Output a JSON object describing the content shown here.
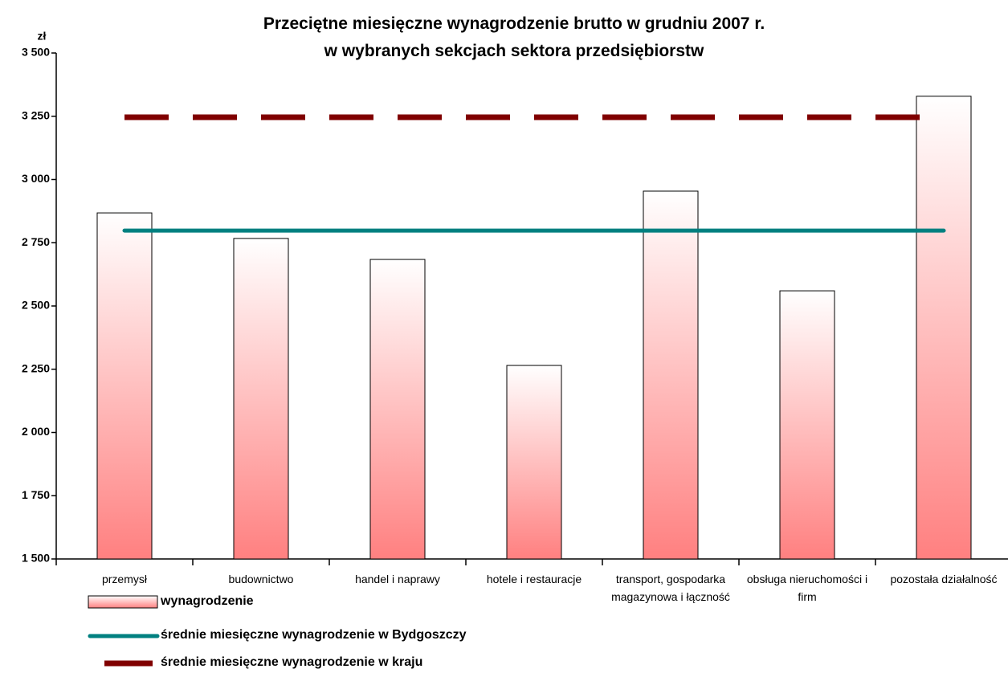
{
  "chart_data": {
    "type": "bar",
    "title": [
      "Przeciętne miesięczne wynagrodzenie brutto w grudniu 2007 r.",
      "w wybranych sekcjach sektora przedsiębiorstw"
    ],
    "y_axis_label": "zł",
    "categories": [
      "przemysł",
      "budownictwo",
      "handel i naprawy",
      "hotele i restauracje",
      "transport, gospodarka magazynowa i łączność",
      "obsługa nieruchomości i firm",
      "pozostała działalność"
    ],
    "series": [
      {
        "name": "wynagrodzenie",
        "type": "bar",
        "color": "#ff8080",
        "values": [
          2868,
          2767,
          2684,
          2265,
          2954,
          2560,
          3329
        ]
      },
      {
        "name": "średnie miesięczne wynagrodzenie w Bydgoszczy",
        "type": "line",
        "color": "#008080",
        "values": [
          2798,
          2798,
          2798,
          2798,
          2798,
          2798,
          2798
        ]
      },
      {
        "name": "średnie miesięczne wynagrodzenie w kraju",
        "type": "dashed-line",
        "color": "#800000",
        "values": [
          3246,
          3246,
          3246,
          3246,
          3246,
          3246,
          3246
        ]
      }
    ],
    "ylim": [
      1500,
      3500
    ],
    "yticks": [
      {
        "value": 1500,
        "label": "1 500"
      },
      {
        "value": 1750,
        "label": "1 750"
      },
      {
        "value": 2000,
        "label": "2 000"
      },
      {
        "value": 2250,
        "label": "2 250"
      },
      {
        "value": 2500,
        "label": "2 500"
      },
      {
        "value": 2750,
        "label": "2 750"
      },
      {
        "value": 3000,
        "label": "3 000"
      },
      {
        "value": 3250,
        "label": "3 250"
      },
      {
        "value": 3500,
        "label": "3 500"
      }
    ]
  }
}
